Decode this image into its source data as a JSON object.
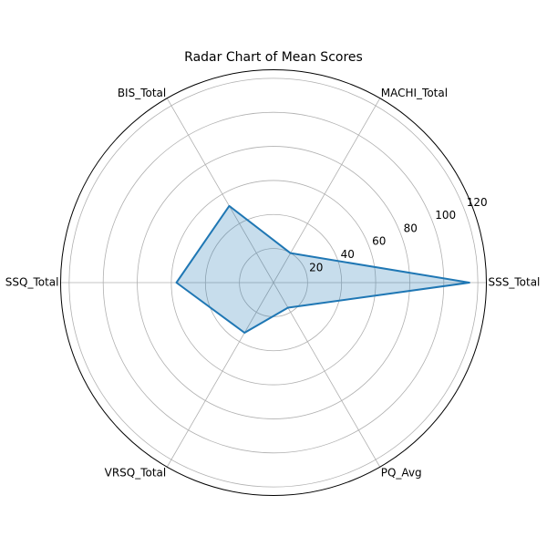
{
  "chart_data": {
    "type": "radar",
    "title": "Radar Chart of Mean Scores",
    "categories": [
      "SSS_Total",
      "MACHI_Total",
      "BIS_Total",
      "SSQ_Total",
      "VRSQ_Total",
      "PQ_Avg"
    ],
    "values": [
      115,
      20,
      52,
      57,
      34,
      17
    ],
    "rlim": [
      0,
      125
    ],
    "rticks": [
      20,
      40,
      60,
      80,
      100,
      120
    ],
    "grid": true,
    "colors": {
      "line": "#1f77b4",
      "fill": "#1f77b4"
    }
  }
}
